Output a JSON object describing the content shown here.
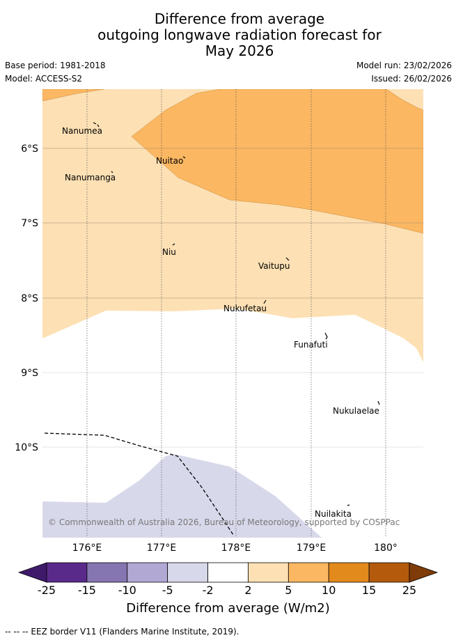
{
  "title": {
    "line1": "Difference from average",
    "line2": "outgoing longwave radiation forecast for",
    "line3": "May 2026"
  },
  "meta": {
    "base_period": "Base period: 1981-2018",
    "model": "Model: ACCESS-S2",
    "model_run": "Model run: 23/02/2026",
    "issued": "Issued: 26/02/2026"
  },
  "map": {
    "lat_labels": [
      "6°S",
      "7°S",
      "8°S",
      "9°S",
      "10°S"
    ],
    "lon_labels": [
      "176°E",
      "177°E",
      "178°E",
      "179°E",
      "180°"
    ],
    "places": [
      "Nanumea",
      "Nanumanga",
      "Nuitao",
      "Niu",
      "Vaitupu",
      "Nukufetau",
      "Funafuti",
      "Nukulaelae",
      "Nuilakita"
    ],
    "copyright": "© Commonwealth of Australia 2026, Bureau of Meteorology, supported by COSPPac"
  },
  "colorbar": {
    "ticks": [
      "-25",
      "-15",
      "-10",
      "-5",
      "-2",
      "2",
      "5",
      "10",
      "15",
      "25"
    ],
    "colors": [
      "#3f1a6b",
      "#5a2a8a",
      "#8575b0",
      "#b2a8d4",
      "#d8d8eb",
      "#ffffff",
      "#fde0b4",
      "#fbb762",
      "#e38a1c",
      "#b35a0c",
      "#7f3b08"
    ],
    "label": "Difference from average (W/m2)"
  },
  "footer": "--  --  -- EEZ border V11 (Flanders Marine Institute, 2019)."
}
